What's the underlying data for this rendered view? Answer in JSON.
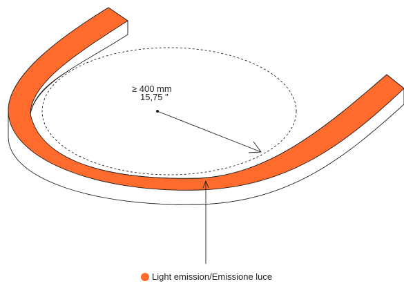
{
  "colors": {
    "emission": "#ff6b2c",
    "stroke": "#1f1f1f",
    "background": "#ffffff"
  },
  "dimension": {
    "radius_mm": "≥ 400 mm",
    "radius_in": "15,75 \""
  },
  "legend": {
    "label": "Light emission/Emissione luce",
    "marker_icon": "circle-dot-icon"
  }
}
